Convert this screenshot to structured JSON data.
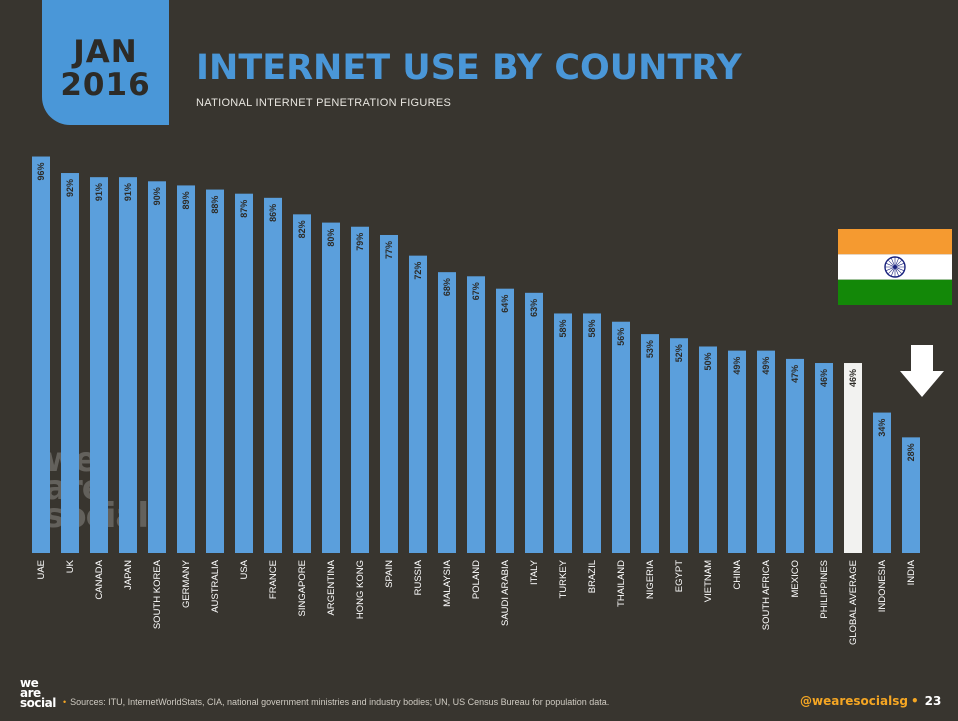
{
  "header": {
    "month": "JAN",
    "year": "2016",
    "title": "INTERNET USE BY COUNTRY",
    "subtitle": "NATIONAL INTERNET PENETRATION FIGURES"
  },
  "watermark": [
    "we",
    "are",
    "social"
  ],
  "footer": {
    "logo": [
      "we",
      "are",
      "social"
    ],
    "bullet": "•",
    "source": "Sources: ITU, InternetWorldStats, CIA, national government ministries and industry bodies; UN, US Census Bureau for population data.",
    "handle": "@wearesocialsg",
    "page": "23"
  },
  "colors": {
    "background": "#38352f",
    "bar": "#5b9fdc",
    "highlight_bar": "#f2f2f0",
    "title": "#4a97d8",
    "accent": "#f5a623",
    "flag_saffron": "#f59a30",
    "flag_green": "#138808",
    "flag_chakra": "#1a237e"
  },
  "chart_data": {
    "type": "bar",
    "title": "INTERNET USE BY COUNTRY",
    "subtitle": "NATIONAL INTERNET PENETRATION FIGURES",
    "xlabel": "",
    "ylabel": "",
    "ylim": [
      0,
      100
    ],
    "grid": false,
    "highlight": "GLOBAL AVERAGE",
    "categories": [
      "UAE",
      "UK",
      "CANADA",
      "JAPAN",
      "SOUTH KOREA",
      "GERMANY",
      "AUSTRALIA",
      "USA",
      "FRANCE",
      "SINGAPORE",
      "ARGENTINA",
      "HONG KONG",
      "SPAIN",
      "RUSSIA",
      "MALAYSIA",
      "POLAND",
      "SAUDI ARABIA",
      "ITALY",
      "TURKEY",
      "BRAZIL",
      "THAILAND",
      "NIGERIA",
      "EGYPT",
      "VIETNAM",
      "CHINA",
      "SOUTH AFRICA",
      "MEXICO",
      "PHILIPPINES",
      "GLOBAL AVERAGE",
      "INDONESIA",
      "INDIA"
    ],
    "values": [
      96,
      92,
      91,
      91,
      90,
      89,
      88,
      87,
      86,
      82,
      80,
      79,
      77,
      72,
      68,
      67,
      64,
      63,
      58,
      58,
      56,
      53,
      52,
      50,
      49,
      49,
      47,
      46,
      46,
      34,
      28
    ],
    "labels": [
      "96%",
      "92%",
      "91%",
      "91%",
      "90%",
      "89%",
      "88%",
      "87%",
      "86%",
      "82%",
      "80%",
      "79%",
      "77%",
      "72%",
      "68%",
      "67%",
      "64%",
      "63%",
      "58%",
      "58%",
      "56%",
      "53%",
      "52%",
      "50%",
      "49%",
      "49%",
      "47%",
      "46%",
      "46%",
      "34%",
      "28%"
    ]
  }
}
